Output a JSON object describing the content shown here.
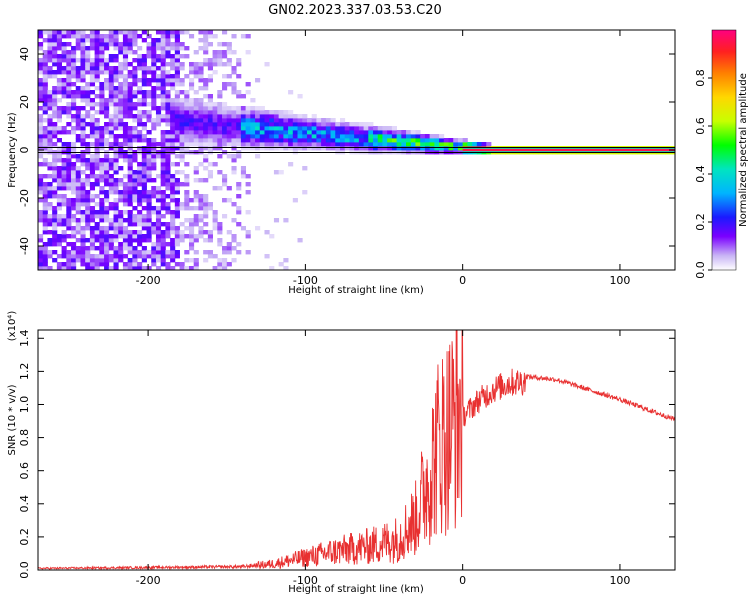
{
  "figure": {
    "title": "GN02.2023.337.03.53.C20"
  },
  "chart_data": [
    {
      "type": "heatmap",
      "title": "GN02.2023.337.03.53.C20",
      "xlabel": "Height of straight line (km)",
      "ylabel": "Frequency (Hz)",
      "xlim": [
        -270,
        135
      ],
      "ylim": [
        -50,
        50
      ],
      "xticks": [
        -200,
        -100,
        0,
        100
      ],
      "yticks": [
        -40,
        -20,
        0,
        20,
        40
      ],
      "grid": false,
      "colorbar": {
        "label": "Normalized spectral amplitude",
        "range": [
          0.0,
          1.0
        ],
        "ticks": [
          0.0,
          0.2,
          0.4,
          0.6,
          0.8
        ],
        "colormap": [
          "#ffffff",
          "#c8b4f5",
          "#7a00ff",
          "#1a1aff",
          "#00b4ff",
          "#00e5c0",
          "#00ff00",
          "#c8ff00",
          "#ffd700",
          "#ff8000",
          "#ff2020",
          "#ff0080"
        ]
      },
      "features": {
        "noise_region_x": [
          -270,
          -135
        ],
        "signal_line_frequency": 0,
        "signal_band_x": [
          -180,
          135
        ]
      }
    },
    {
      "type": "line",
      "xlabel": "Height of straight line (km)",
      "ylabel": "SNR (10 * v/v)",
      "y_multiplier_label": "(x10⁴)",
      "xlim": [
        -270,
        135
      ],
      "ylim": [
        0,
        1.45
      ],
      "xticks": [
        -200,
        -100,
        0,
        100
      ],
      "yticks": [
        0.0,
        0.2,
        0.4,
        0.6,
        0.8,
        1.0,
        1.2,
        1.4
      ],
      "grid": false,
      "series": [
        {
          "color": "#e83030",
          "x": [
            -270,
            -200,
            -140,
            -120,
            -100,
            -80,
            -60,
            -40,
            -30,
            -25,
            -20,
            -15,
            -10,
            -5,
            0,
            10,
            20,
            30,
            40,
            60,
            80,
            100,
            120,
            135
          ],
          "y": [
            0.01,
            0.015,
            0.02,
            0.04,
            0.08,
            0.12,
            0.15,
            0.2,
            0.3,
            0.45,
            0.6,
            0.75,
            0.8,
            0.88,
            0.95,
            1.05,
            1.12,
            1.16,
            1.17,
            1.15,
            1.09,
            1.03,
            0.96,
            0.91
          ]
        }
      ]
    }
  ]
}
